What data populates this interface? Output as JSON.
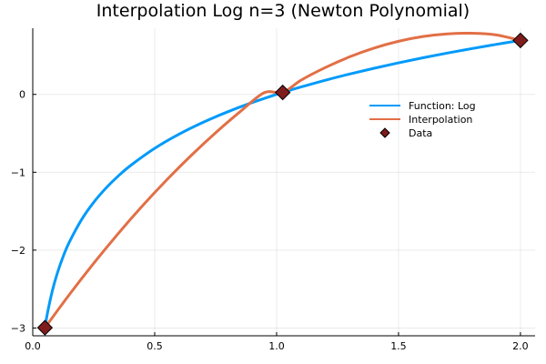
{
  "chart_data": {
    "type": "line",
    "title": "Interpolation Log n=3  (Newton Polynomial)",
    "xlabel": "",
    "ylabel": "",
    "xlim": [
      0.0,
      2.06
    ],
    "ylim": [
      -3.1,
      0.85
    ],
    "xticks": [
      0.0,
      0.5,
      1.0,
      1.5,
      2.0
    ],
    "xtick_labels": [
      "0.0",
      "0.5",
      "1.0",
      "1.5",
      "2.0"
    ],
    "yticks": [
      -3,
      -2,
      -1,
      0
    ],
    "ytick_labels": [
      "−3",
      "−2",
      "−1",
      "0"
    ],
    "grid": true,
    "legend_position": "right",
    "series": [
      {
        "name": "Function: Log",
        "color": "#009AFA",
        "x": [
          0.05,
          0.06,
          0.08,
          0.1,
          0.125,
          0.15,
          0.2,
          0.25,
          0.3,
          0.35,
          0.4,
          0.5,
          0.6,
          0.7,
          0.8,
          0.9,
          1.0,
          1.025,
          1.1,
          1.2,
          1.3,
          1.4,
          1.5,
          1.6,
          1.7,
          1.8,
          1.9,
          2.0
        ],
        "y": [
          -2.996,
          -2.813,
          -2.526,
          -2.303,
          -2.079,
          -1.897,
          -1.609,
          -1.386,
          -1.204,
          -1.05,
          -0.916,
          -0.693,
          -0.511,
          -0.357,
          -0.223,
          -0.105,
          0.0,
          0.025,
          0.095,
          0.182,
          0.262,
          0.336,
          0.405,
          0.47,
          0.531,
          0.588,
          0.642,
          0.693
        ]
      },
      {
        "name": "Interpolation",
        "color": "#E26F46",
        "x": [
          0.05,
          0.15,
          0.25,
          0.35,
          0.45,
          0.55,
          0.65,
          0.75,
          0.85,
          0.95,
          1.025,
          1.1,
          1.2,
          1.3,
          1.4,
          1.5,
          1.6,
          1.7,
          1.8,
          1.9,
          2.0
        ],
        "y": [
          -2.996,
          -2.571,
          -2.169,
          -1.789,
          -1.431,
          -1.096,
          -0.783,
          -0.492,
          -0.223,
          0.023,
          0.025,
          0.182,
          0.345,
          0.483,
          0.595,
          0.682,
          0.743,
          0.777,
          0.785,
          0.764,
          0.693
        ]
      }
    ],
    "points": {
      "name": "Data",
      "color": "#7F1C1C",
      "x": [
        0.05,
        1.025,
        2.0
      ],
      "y": [
        -2.996,
        0.025,
        0.693
      ]
    }
  }
}
